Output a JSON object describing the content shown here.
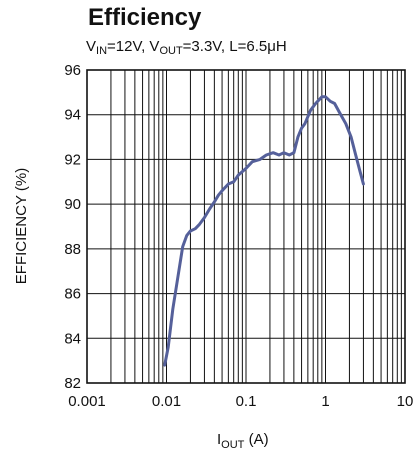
{
  "chart_data": {
    "type": "line",
    "title": "Efficiency",
    "subtitle": {
      "parts": [
        "V",
        "IN",
        "=12V, V",
        "OUT",
        "=3.3V, L=6.5μH"
      ]
    },
    "xlabel": {
      "main": "I",
      "sub": "OUT",
      "unit": " (A)"
    },
    "ylabel": "EFFICIENCY (%)",
    "xscale": "log",
    "xlim": [
      0.001,
      10
    ],
    "ylim": [
      82,
      96
    ],
    "x_ticks": [
      "0.001",
      "0.01",
      "0.1",
      "1",
      "10"
    ],
    "y_ticks": [
      "82",
      "84",
      "86",
      "88",
      "90",
      "92",
      "94",
      "96"
    ],
    "grid": true,
    "series": [
      {
        "color": "#55609a",
        "points": [
          [
            0.0095,
            82.8
          ],
          [
            0.0105,
            83.6
          ],
          [
            0.012,
            85.3
          ],
          [
            0.014,
            86.8
          ],
          [
            0.016,
            88.1
          ],
          [
            0.018,
            88.6
          ],
          [
            0.02,
            88.8
          ],
          [
            0.023,
            88.9
          ],
          [
            0.026,
            89.1
          ],
          [
            0.03,
            89.4
          ],
          [
            0.035,
            89.8
          ],
          [
            0.04,
            90.1
          ],
          [
            0.045,
            90.4
          ],
          [
            0.05,
            90.6
          ],
          [
            0.06,
            90.9
          ],
          [
            0.07,
            91.0
          ],
          [
            0.08,
            91.3
          ],
          [
            0.1,
            91.6
          ],
          [
            0.12,
            91.9
          ],
          [
            0.15,
            92.0
          ],
          [
            0.18,
            92.2
          ],
          [
            0.22,
            92.3
          ],
          [
            0.26,
            92.2
          ],
          [
            0.3,
            92.3
          ],
          [
            0.35,
            92.2
          ],
          [
            0.4,
            92.3
          ],
          [
            0.45,
            93.0
          ],
          [
            0.5,
            93.4
          ],
          [
            0.55,
            93.6
          ],
          [
            0.65,
            94.2
          ],
          [
            0.75,
            94.5
          ],
          [
            0.9,
            94.8
          ],
          [
            1.0,
            94.8
          ],
          [
            1.15,
            94.6
          ],
          [
            1.3,
            94.5
          ],
          [
            1.5,
            94.1
          ],
          [
            1.8,
            93.6
          ],
          [
            2.1,
            93.0
          ],
          [
            2.4,
            92.2
          ],
          [
            2.7,
            91.5
          ],
          [
            3.0,
            90.9
          ]
        ]
      }
    ]
  }
}
